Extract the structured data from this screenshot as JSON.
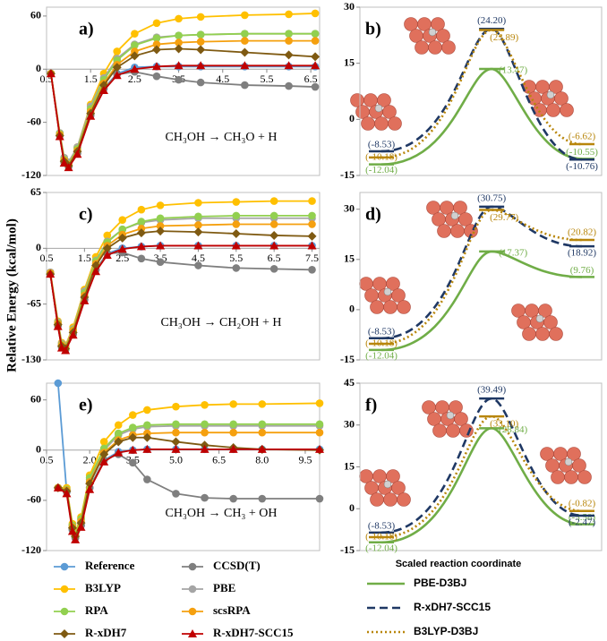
{
  "chart_data": [
    {
      "type": "line",
      "panel": "a)",
      "equation": "CH₃OH → CH₃O + H",
      "ylabel": "Relative Energy (kcal/mol)",
      "x": [
        0.6,
        0.8,
        0.9,
        1.0,
        1.2,
        1.5,
        1.8,
        2.1,
        2.5,
        3.0,
        3.5,
        4.0,
        5.0,
        6.0,
        6.6
      ],
      "xlim": [
        0.5,
        6.7
      ],
      "xticks": [
        0.5,
        1.5,
        2.5,
        3.5,
        4.5,
        5.5,
        6.5
      ],
      "ylim": [
        -120,
        70
      ],
      "yticks": [
        60,
        0,
        -60,
        -120
      ],
      "series": [
        {
          "name": "Reference",
          "color": "#5b9bd5",
          "marker": "circle",
          "values": [
            -5,
            -75,
            -105,
            -110,
            -95,
            -52,
            -22,
            -5,
            2,
            3,
            3,
            3,
            3,
            3,
            3
          ]
        },
        {
          "name": "CCSD(T)",
          "color": "#7f7f7f",
          "marker": "circle",
          "values": [
            -5,
            -75,
            -105,
            -110,
            -95,
            -52,
            -22,
            -6,
            -3,
            -8,
            -12,
            -15,
            -18,
            -19,
            -20
          ]
        },
        {
          "name": "B3LYP",
          "color": "#ffc000",
          "marker": "circle",
          "values": [
            -5,
            -72,
            -100,
            -105,
            -88,
            -40,
            -5,
            20,
            40,
            52,
            57,
            59,
            61,
            62,
            63
          ]
        },
        {
          "name": "PBE",
          "color": "#a5a5a5",
          "marker": "circle",
          "values": [
            -5,
            -72,
            -100,
            -105,
            -88,
            -42,
            -10,
            12,
            28,
            36,
            38,
            39,
            40,
            40,
            40
          ]
        },
        {
          "name": "RPA",
          "color": "#92d050",
          "marker": "circle",
          "values": [
            -5,
            -73,
            -102,
            -107,
            -90,
            -45,
            -12,
            10,
            27,
            35,
            38,
            39,
            40,
            40,
            40
          ]
        },
        {
          "name": "scsRPA",
          "color": "#f5a00f",
          "marker": "circle",
          "values": [
            -5,
            -74,
            -103,
            -108,
            -92,
            -48,
            -16,
            5,
            20,
            28,
            30,
            31,
            32,
            32,
            32
          ]
        },
        {
          "name": "R-xDH7",
          "color": "#7f5a12",
          "marker": "diamond",
          "values": [
            -5,
            -75,
            -104,
            -109,
            -93,
            -50,
            -18,
            2,
            15,
            22,
            23,
            22,
            19,
            16,
            14
          ]
        },
        {
          "name": "R-xDH7-SCC15",
          "color": "#c00000",
          "marker": "triangle",
          "values": [
            -5,
            -76,
            -106,
            -111,
            -96,
            -53,
            -24,
            -7,
            0,
            3,
            4,
            4,
            4,
            4,
            4
          ]
        }
      ]
    },
    {
      "type": "profile",
      "panel": "b)",
      "ylim": [
        -15,
        30
      ],
      "yticks": [
        -15,
        0,
        15,
        30
      ],
      "series": [
        {
          "name": "PBE-D3BJ",
          "color": "#70ad47",
          "linestyle": "solid",
          "values": [
            -12.04,
            13.47,
            -10.55
          ],
          "value_labels": [
            "(-12.04)",
            "(13.47)",
            "(-10.55)"
          ]
        },
        {
          "name": "R-xDH7-SCC15",
          "color": "#1f3864",
          "linestyle": "dashed",
          "values": [
            -8.53,
            24.2,
            -10.76
          ],
          "value_labels": [
            "(-8.53)",
            "(24.20)",
            "(-10.76)"
          ]
        },
        {
          "name": "B3LYP-D3BJ",
          "color": "#b8860b",
          "linestyle": "dotted",
          "values": [
            -10.18,
            23.89,
            -6.62
          ],
          "value_labels": [
            "(-10.18)",
            "(23.89)",
            "(-6.62)"
          ]
        }
      ]
    },
    {
      "type": "line",
      "panel": "c)",
      "equation": "CH₃OH → CH₂OH + H",
      "x": [
        0.6,
        0.8,
        0.9,
        1.0,
        1.2,
        1.5,
        1.8,
        2.1,
        2.5,
        3.0,
        3.5,
        4.5,
        5.5,
        6.5,
        7.5
      ],
      "xlim": [
        0.5,
        7.7
      ],
      "xticks": [
        0.5,
        1.5,
        2.5,
        3.5,
        4.5,
        5.5,
        6.5,
        7.5
      ],
      "ylim": [
        -130,
        65
      ],
      "yticks": [
        65,
        0,
        -65,
        -130
      ],
      "series": [
        {
          "color": "#5b9bd5",
          "marker": "circle",
          "values": [
            -30,
            -90,
            -115,
            -118,
            -100,
            -60,
            -25,
            -6,
            0,
            2,
            3,
            3,
            3,
            3,
            3
          ]
        },
        {
          "color": "#7f7f7f",
          "marker": "circle",
          "values": [
            -30,
            -90,
            -115,
            -118,
            -100,
            -60,
            -25,
            -6,
            -5,
            -12,
            -16,
            -20,
            -23,
            -24,
            -25
          ]
        },
        {
          "color": "#ffc000",
          "marker": "circle",
          "values": [
            -28,
            -85,
            -110,
            -113,
            -92,
            -48,
            -10,
            15,
            33,
            45,
            50,
            53,
            54,
            55,
            55
          ]
        },
        {
          "color": "#a5a5a5",
          "marker": "circle",
          "values": [
            -28,
            -86,
            -111,
            -114,
            -94,
            -50,
            -14,
            8,
            22,
            30,
            33,
            35,
            35,
            35,
            35
          ]
        },
        {
          "color": "#92d050",
          "marker": "circle",
          "values": [
            -29,
            -87,
            -112,
            -115,
            -95,
            -52,
            -15,
            7,
            22,
            31,
            35,
            37,
            38,
            38,
            38
          ]
        },
        {
          "color": "#f5a00f",
          "marker": "circle",
          "values": [
            -29,
            -88,
            -113,
            -116,
            -96,
            -55,
            -18,
            3,
            16,
            23,
            26,
            27,
            28,
            28,
            28
          ]
        },
        {
          "color": "#7f5a12",
          "marker": "diamond",
          "values": [
            -30,
            -89,
            -114,
            -117,
            -98,
            -57,
            -20,
            0,
            12,
            18,
            20,
            19,
            17,
            15,
            14
          ]
        },
        {
          "color": "#c00000",
          "marker": "triangle",
          "values": [
            -30,
            -91,
            -116,
            -119,
            -101,
            -61,
            -27,
            -8,
            -1,
            2,
            3,
            3,
            3,
            3,
            3
          ]
        }
      ]
    },
    {
      "type": "profile",
      "panel": "d)",
      "ylim": [
        -15,
        35
      ],
      "yticks": [
        -15,
        0,
        15,
        30
      ],
      "series": [
        {
          "color": "#70ad47",
          "linestyle": "solid",
          "values": [
            -12.04,
            17.37,
            9.76
          ],
          "value_labels": [
            "(-12.04)",
            "(17.37)",
            "(9.76)"
          ]
        },
        {
          "color": "#1f3864",
          "linestyle": "dashed",
          "values": [
            -8.53,
            30.75,
            18.92
          ],
          "value_labels": [
            "(-8.53)",
            "(30.75)",
            "(18.92)"
          ]
        },
        {
          "color": "#b8860b",
          "linestyle": "dotted",
          "values": [
            -10.18,
            29.77,
            20.82
          ],
          "value_labels": [
            "(-10.18)",
            "(29.77)",
            "(20.82)"
          ]
        }
      ]
    },
    {
      "type": "line",
      "panel": "e)",
      "equation": "CH₃OH → CH₃ + OH",
      "x": [
        0.9,
        1.2,
        1.4,
        1.5,
        1.7,
        2.0,
        2.5,
        3.0,
        3.5,
        4.0,
        5.0,
        6.0,
        7.0,
        8.0,
        10.0
      ],
      "xlim": [
        0.5,
        10.0
      ],
      "xticks": [
        0.5,
        {
          "value": 2,
          "label": "2.0"
        },
        3.5,
        {
          "value": 5,
          "label": "5.0"
        },
        6.5,
        {
          "value": 8,
          "label": "8.0"
        },
        9.5
      ],
      "ylim": [
        -120,
        80
      ],
      "yticks": [
        60,
        0,
        -60,
        -120
      ],
      "series": [
        {
          "color": "#5b9bd5",
          "marker": "circle",
          "values": [
            80,
            -50,
            -95,
            -105,
            -90,
            -45,
            -12,
            -2,
            0,
            1,
            1,
            1,
            1,
            1,
            1
          ]
        },
        {
          "color": "#7f7f7f",
          "marker": "circle",
          "values": [
            -45,
            -50,
            -95,
            -105,
            -90,
            -45,
            -12,
            -5,
            -15,
            -35,
            -52,
            -57,
            -58,
            -58,
            -58
          ]
        },
        {
          "color": "#ffc000",
          "marker": "circle",
          "values": [
            -45,
            -45,
            -88,
            -98,
            -80,
            -30,
            10,
            30,
            42,
            48,
            52,
            54,
            55,
            55,
            56
          ]
        },
        {
          "color": "#a5a5a5",
          "marker": "circle",
          "values": [
            -45,
            -47,
            -90,
            -100,
            -83,
            -35,
            0,
            18,
            25,
            28,
            29,
            29,
            29,
            29,
            29
          ]
        },
        {
          "color": "#92d050",
          "marker": "circle",
          "values": [
            -45,
            -47,
            -90,
            -100,
            -82,
            -33,
            2,
            20,
            27,
            30,
            31,
            31,
            31,
            31,
            31
          ]
        },
        {
          "color": "#f5a00f",
          "marker": "circle",
          "values": [
            -45,
            -48,
            -92,
            -102,
            -85,
            -38,
            -3,
            12,
            18,
            20,
            21,
            21,
            21,
            21,
            21
          ]
        },
        {
          "color": "#7f5a12",
          "marker": "diamond",
          "values": [
            -45,
            -49,
            -93,
            -103,
            -87,
            -40,
            -5,
            10,
            15,
            15,
            10,
            6,
            3,
            1,
            0
          ]
        },
        {
          "color": "#c00000",
          "marker": "triangle",
          "values": [
            -45,
            -52,
            -97,
            -107,
            -92,
            -47,
            -14,
            -3,
            0,
            1,
            1,
            1,
            1,
            1,
            1
          ]
        }
      ]
    },
    {
      "type": "profile",
      "panel": "f)",
      "xlabel": "Scaled reaction coordinate",
      "ylim": [
        -15,
        45
      ],
      "yticks": [
        -15,
        0,
        15,
        30,
        45
      ],
      "series": [
        {
          "color": "#70ad47",
          "linestyle": "solid",
          "values": [
            -12.04,
            28.84,
            -5.58
          ],
          "value_labels": [
            "(-12.04)",
            "(28.84)",
            "(-5.58)"
          ]
        },
        {
          "color": "#1f3864",
          "linestyle": "dashed",
          "values": [
            -8.53,
            39.49,
            -2.47
          ],
          "value_labels": [
            "(-8.53)",
            "(39.49)",
            "(-2.47)"
          ]
        },
        {
          "color": "#b8860b",
          "linestyle": "dotted",
          "values": [
            -10.18,
            33.1,
            -0.82
          ],
          "value_labels": [
            "(-10.18)",
            "(33.10)",
            "(-0.82)"
          ]
        }
      ]
    }
  ]
}
